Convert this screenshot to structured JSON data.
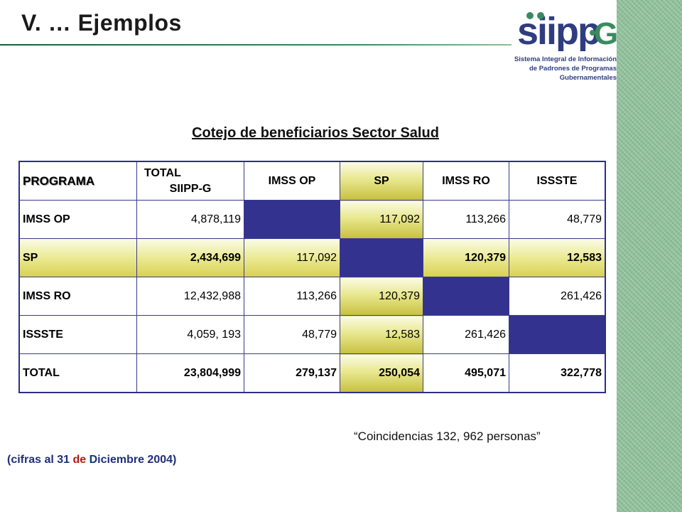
{
  "slide": {
    "title": "V. … Ejemplos"
  },
  "logo": {
    "wordmark": "siipp-G",
    "line1": "Sistema Integral de Información",
    "line2": "de Padrones de Programas",
    "line3": "Gubernamentales"
  },
  "heading": "Cotejo de beneficiarios Sector Salud",
  "table": {
    "headers": {
      "programa": "PROGRAMA",
      "total_line1": "TOTAL",
      "total_line2": "SIIPP-G",
      "imss_op": "IMSS OP",
      "sp": "SP",
      "imss_ro": "IMSS RO",
      "issste": "ISSSTE"
    },
    "rows": [
      {
        "label": "IMSS OP",
        "total": "4,878,119",
        "imss_op": "",
        "sp": "117,092",
        "imss_ro": "113,266",
        "issste": "48,779"
      },
      {
        "label": "SP",
        "total": "2,434,699",
        "imss_op": "117,092",
        "sp": "",
        "imss_ro": "120,379",
        "issste": "12,583"
      },
      {
        "label": "IMSS RO",
        "total": "12,432,988",
        "imss_op": "113,266",
        "sp": "120,379",
        "imss_ro": "",
        "issste": "261,426"
      },
      {
        "label": "ISSSTE",
        "total": "4,059, 193",
        "imss_op": "48,779",
        "sp": "12,583",
        "imss_ro": "261,426",
        "issste": ""
      },
      {
        "label": "TOTAL",
        "total": "23,804,999",
        "imss_op": "279,137",
        "sp": "250,054",
        "imss_ro": "495,071",
        "issste": "322,778"
      }
    ]
  },
  "coincidencias": "“Coincidencias  132, 962 personas”",
  "note": {
    "part1": "(cifras al 31 ",
    "part2": "de",
    "part3": " Diciembre 2004)"
  },
  "colors": {
    "blank_cell": "#33338f",
    "highlight": "#e8e890",
    "border": "#3a3a8c",
    "note_blue": "#1f2f7a",
    "note_red": "#b31818"
  }
}
